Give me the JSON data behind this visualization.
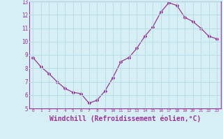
{
  "x": [
    0,
    1,
    2,
    3,
    4,
    5,
    6,
    7,
    8,
    9,
    10,
    11,
    12,
    13,
    14,
    15,
    16,
    17,
    18,
    19,
    20,
    21,
    22,
    23
  ],
  "y": [
    8.8,
    8.1,
    7.6,
    7.0,
    6.5,
    6.2,
    6.1,
    5.4,
    5.6,
    6.3,
    7.3,
    8.5,
    8.8,
    9.5,
    10.4,
    11.1,
    12.2,
    12.9,
    12.7,
    11.8,
    11.5,
    11.0,
    10.4,
    10.2
  ],
  "line_color": "#993399",
  "marker": "D",
  "marker_size": 2.0,
  "xlabel": "Windchill (Refroidissement éolien,°C)",
  "xlabel_fontsize": 7,
  "xtick_labels": [
    "0",
    "1",
    "2",
    "3",
    "4",
    "5",
    "6",
    "7",
    "8",
    "9",
    "10",
    "11",
    "12",
    "13",
    "14",
    "15",
    "16",
    "17",
    "18",
    "19",
    "20",
    "21",
    "22",
    "23"
  ],
  "ylim": [
    5,
    13
  ],
  "ytick_vals": [
    5,
    6,
    7,
    8,
    9,
    10,
    11,
    12,
    13
  ],
  "background_color": "#d6eff5",
  "grid_color": "#b8dde8",
  "tick_color": "#993399",
  "title_color": "#993399",
  "spine_color": "#993399"
}
